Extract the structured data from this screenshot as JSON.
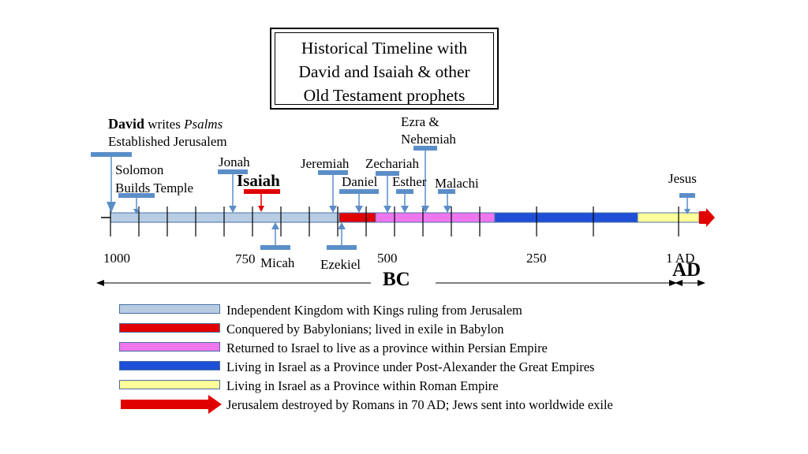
{
  "title": {
    "line1": "Historical Timeline with",
    "line2": "David and Isaiah & other",
    "line3": "Old Testament prophets"
  },
  "events": {
    "david_name": "David",
    "david_writes": " writes ",
    "david_psalms": "Psalms",
    "david_line2": "Established Jerusalem",
    "solomon_line1": "Solomon",
    "solomon_line2": "Builds Temple",
    "jonah": "Jonah",
    "isaiah": "Isaiah",
    "micah": "Micah",
    "jeremiah": "Jeremiah",
    "ezekiel": "Ezekiel",
    "daniel": "Daniel",
    "zechariah": "Zechariah",
    "esther": "Esther",
    "ezra_line1": "Ezra &",
    "ezra_line2": "Nehemiah",
    "malachi": "Malachi",
    "jesus": "Jesus"
  },
  "axis": {
    "ticks": [
      "1000",
      "750",
      "500",
      "250",
      "1 AD"
    ],
    "bc_label": "BC",
    "ad_label": "AD"
  },
  "colors": {
    "kingdom": "#b8cce4",
    "babylon": "#e00000",
    "persian": "#ee77ee",
    "post_alexander": "#1f4fd6",
    "roman": "#ffff99",
    "arrow": "#e00000",
    "marker": "#5b8ec8",
    "isaiah_marker": "#e00000"
  },
  "legend": [
    {
      "text": "Independent Kingdom with Kings ruling from Jerusalem",
      "color": "#b8cce4"
    },
    {
      "text": "Conquered by Babylonians; lived in exile in Babylon",
      "color": "#e00000"
    },
    {
      "text": "Returned to Israel to live as a province within Persian Empire",
      "color": "#ee77ee"
    },
    {
      "text": "Living in Israel as a Province under Post-Alexander the Great Empires",
      "color": "#1f4fd6"
    },
    {
      "text": "Living in Israel as a Province within Roman Empire",
      "color": "#ffff99"
    },
    {
      "text": "Jerusalem destroyed by Romans in 70 AD; Jews sent into worldwide exile",
      "color": "#e00000"
    }
  ]
}
